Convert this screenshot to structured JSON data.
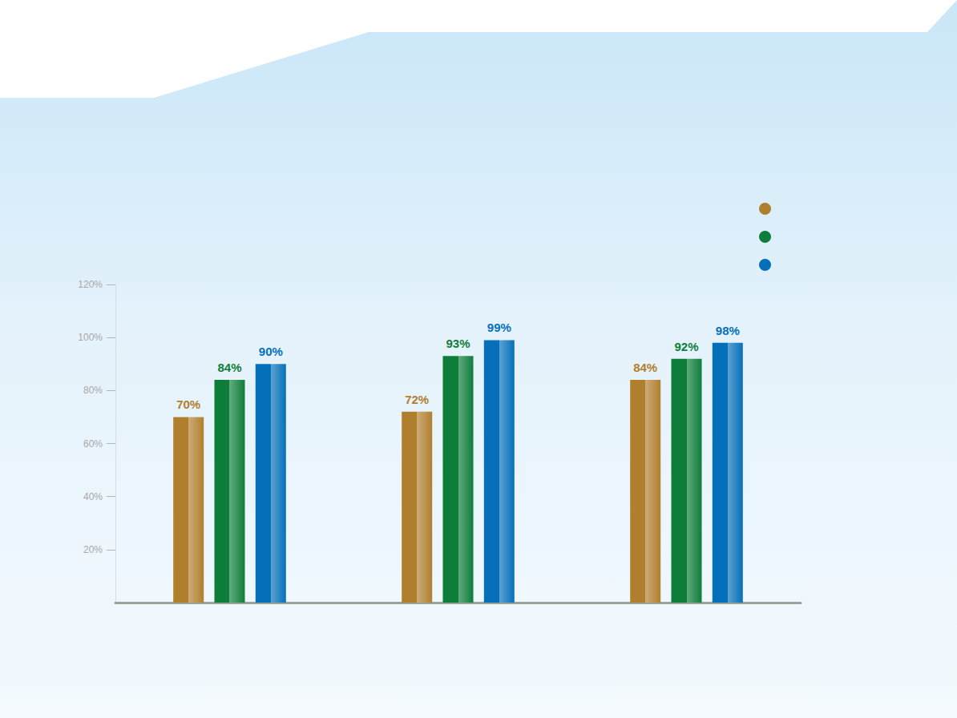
{
  "chart_data": {
    "type": "bar",
    "categories": [
      null,
      null,
      null
    ],
    "series": [
      {
        "color": "#b07f2e",
        "values": [
          70,
          72,
          84
        ],
        "value_labels": [
          "70%",
          "72%",
          "84%"
        ]
      },
      {
        "color": "#0e7d3a",
        "values": [
          84,
          93,
          92
        ],
        "value_labels": [
          "84%",
          "93%",
          "92%"
        ]
      },
      {
        "color": "#0570b9",
        "values": [
          90,
          99,
          98
        ],
        "value_labels": [
          "90%",
          "99%",
          "98%"
        ]
      }
    ],
    "ylim": [
      0,
      120
    ],
    "yticks": [
      {
        "value": 20,
        "label": "20%"
      },
      {
        "value": 40,
        "label": "40%"
      },
      {
        "value": 60,
        "label": "60%"
      },
      {
        "value": 80,
        "label": "80%"
      },
      {
        "value": 100,
        "label": "100%"
      },
      {
        "value": 120,
        "label": "120%"
      }
    ],
    "data_labels": true,
    "grid": false
  }
}
